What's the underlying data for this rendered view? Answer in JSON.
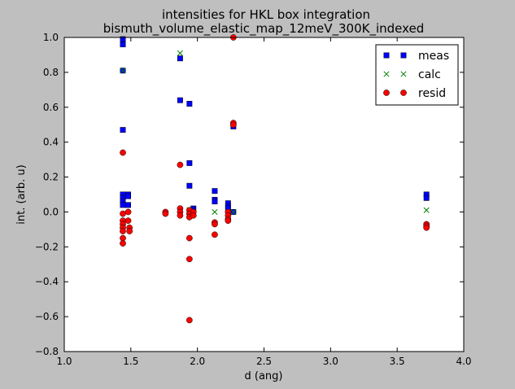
{
  "chart_data": {
    "type": "scatter",
    "title_line1": "intensities for HKL box integration",
    "title_line2": "bismuth_volume_elastic_map_12meV_300K_indexed",
    "xlabel": "d (ang)",
    "ylabel": "int. (arb. u)",
    "xlim": [
      1.0,
      4.0
    ],
    "ylim": [
      -0.8,
      1.0
    ],
    "xticks": [
      1.0,
      1.5,
      2.0,
      2.5,
      3.0,
      3.5,
      4.0
    ],
    "xtick_labels": [
      "1.0",
      "1.5",
      "2.0",
      "2.5",
      "3.0",
      "3.5",
      "4.0"
    ],
    "yticks": [
      -0.8,
      -0.6,
      -0.4,
      -0.2,
      0.0,
      0.2,
      0.4,
      0.6,
      0.8,
      1.0
    ],
    "ytick_labels": [
      "−0.8",
      "−0.6",
      "−0.4",
      "−0.2",
      "0.0",
      "0.2",
      "0.4",
      "0.6",
      "0.8",
      "1.0"
    ],
    "grid": false,
    "legend_position": "top-right",
    "series": [
      {
        "name": "meas",
        "marker": "square",
        "color": "#0000ff",
        "points": [
          [
            1.44,
            0.99
          ],
          [
            1.44,
            0.96
          ],
          [
            1.44,
            0.81
          ],
          [
            1.44,
            0.47
          ],
          [
            1.44,
            0.1
          ],
          [
            1.44,
            0.08
          ],
          [
            1.44,
            0.06
          ],
          [
            1.44,
            0.04
          ],
          [
            1.48,
            0.1
          ],
          [
            1.48,
            0.09
          ],
          [
            1.48,
            0.04
          ],
          [
            1.87,
            0.88
          ],
          [
            1.87,
            0.64
          ],
          [
            1.94,
            0.62
          ],
          [
            1.94,
            0.28
          ],
          [
            1.94,
            0.15
          ],
          [
            1.97,
            0.02
          ],
          [
            1.96,
            0.01
          ],
          [
            2.13,
            0.12
          ],
          [
            2.13,
            0.07
          ],
          [
            2.13,
            0.06
          ],
          [
            2.23,
            0.05
          ],
          [
            2.23,
            0.03
          ],
          [
            2.23,
            0.02
          ],
          [
            2.27,
            0.49
          ],
          [
            2.27,
            0.0
          ],
          [
            3.72,
            0.1
          ],
          [
            3.72,
            0.08
          ]
        ]
      },
      {
        "name": "calc",
        "marker": "x",
        "color": "#008000",
        "points": [
          [
            1.44,
            0.81
          ],
          [
            1.87,
            0.91
          ],
          [
            1.94,
            0.01
          ],
          [
            2.13,
            0.0
          ],
          [
            2.27,
            0.0
          ],
          [
            3.72,
            0.01
          ]
        ]
      },
      {
        "name": "resid",
        "marker": "circle",
        "color": "#ff0000",
        "points": [
          [
            1.44,
            0.34
          ],
          [
            1.44,
            -0.01
          ],
          [
            1.44,
            -0.05
          ],
          [
            1.44,
            -0.07
          ],
          [
            1.44,
            -0.09
          ],
          [
            1.44,
            -0.11
          ],
          [
            1.44,
            -0.15
          ],
          [
            1.44,
            -0.18
          ],
          [
            1.48,
            0.0
          ],
          [
            1.48,
            -0.05
          ],
          [
            1.49,
            -0.09
          ],
          [
            1.49,
            -0.11
          ],
          [
            1.76,
            0.0
          ],
          [
            1.76,
            -0.01
          ],
          [
            1.87,
            0.27
          ],
          [
            1.87,
            0.02
          ],
          [
            1.87,
            0.0
          ],
          [
            1.87,
            -0.02
          ],
          [
            1.94,
            0.01
          ],
          [
            1.94,
            -0.01
          ],
          [
            1.94,
            -0.03
          ],
          [
            1.94,
            -0.15
          ],
          [
            1.94,
            -0.27
          ],
          [
            1.94,
            -0.62
          ],
          [
            1.97,
            0.0
          ],
          [
            1.97,
            -0.02
          ],
          [
            2.13,
            -0.06
          ],
          [
            2.13,
            -0.07
          ],
          [
            2.13,
            -0.13
          ],
          [
            2.23,
            0.0
          ],
          [
            2.23,
            -0.02
          ],
          [
            2.23,
            -0.04
          ],
          [
            2.23,
            -0.05
          ],
          [
            2.27,
            1.0
          ],
          [
            2.27,
            0.51
          ],
          [
            2.27,
            0.5
          ],
          [
            3.72,
            -0.07
          ],
          [
            3.72,
            -0.08
          ],
          [
            3.72,
            -0.09
          ]
        ]
      }
    ]
  }
}
